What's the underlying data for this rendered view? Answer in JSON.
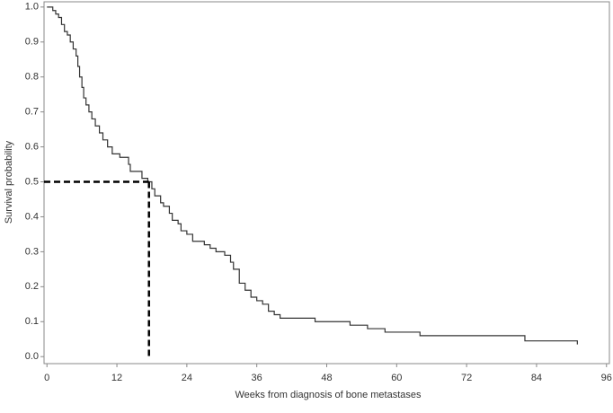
{
  "chart_data": {
    "type": "step",
    "x_label": "Weeks from diagnosis of bone metastases",
    "y_label": "Survival probability",
    "xlim": [
      -0.5,
      96.5
    ],
    "xticks": [
      0,
      12,
      24,
      36,
      48,
      60,
      72,
      84,
      96
    ],
    "ylim": [
      -0.02,
      1.015
    ],
    "yticks": [
      {
        "value": 0,
        "label": "0.0"
      },
      0.1,
      0.2,
      0.3,
      0.4,
      0.5,
      0.6,
      0.7,
      0.8,
      0.9,
      {
        "value": 1,
        "label": "1.0"
      }
    ],
    "color": "#333333",
    "x": [
      0,
      1,
      1.5,
      2,
      2.5,
      3,
      3.5,
      4,
      4.5,
      5,
      5.3,
      5.6,
      6,
      6.3,
      6.7,
      7.2,
      7.7,
      8.3,
      9,
      9.6,
      10.4,
      11.2,
      12.5,
      14,
      14.3,
      16.3,
      17.3,
      18,
      18.5,
      19.5,
      20,
      21,
      21.5,
      22.5,
      23,
      24,
      25,
      27,
      28,
      29,
      30.5,
      31.5,
      32,
      33,
      34,
      35,
      36,
      37,
      38,
      39,
      40,
      46,
      52,
      55,
      58,
      64,
      82,
      91
    ],
    "values": [
      1.0,
      0.99,
      0.98,
      0.97,
      0.95,
      0.93,
      0.92,
      0.9,
      0.88,
      0.86,
      0.83,
      0.8,
      0.77,
      0.74,
      0.72,
      0.7,
      0.68,
      0.66,
      0.64,
      0.62,
      0.6,
      0.58,
      0.57,
      0.55,
      0.53,
      0.51,
      0.5,
      0.48,
      0.46,
      0.44,
      0.43,
      0.41,
      0.39,
      0.38,
      0.36,
      0.35,
      0.33,
      0.32,
      0.31,
      0.3,
      0.29,
      0.27,
      0.25,
      0.21,
      0.19,
      0.17,
      0.16,
      0.15,
      0.13,
      0.12,
      0.11,
      0.1,
      0.09,
      0.08,
      0.07,
      0.06,
      0.045,
      0.035
    ],
    "reference": {
      "x": 17.5,
      "y": 0.5
    }
  }
}
